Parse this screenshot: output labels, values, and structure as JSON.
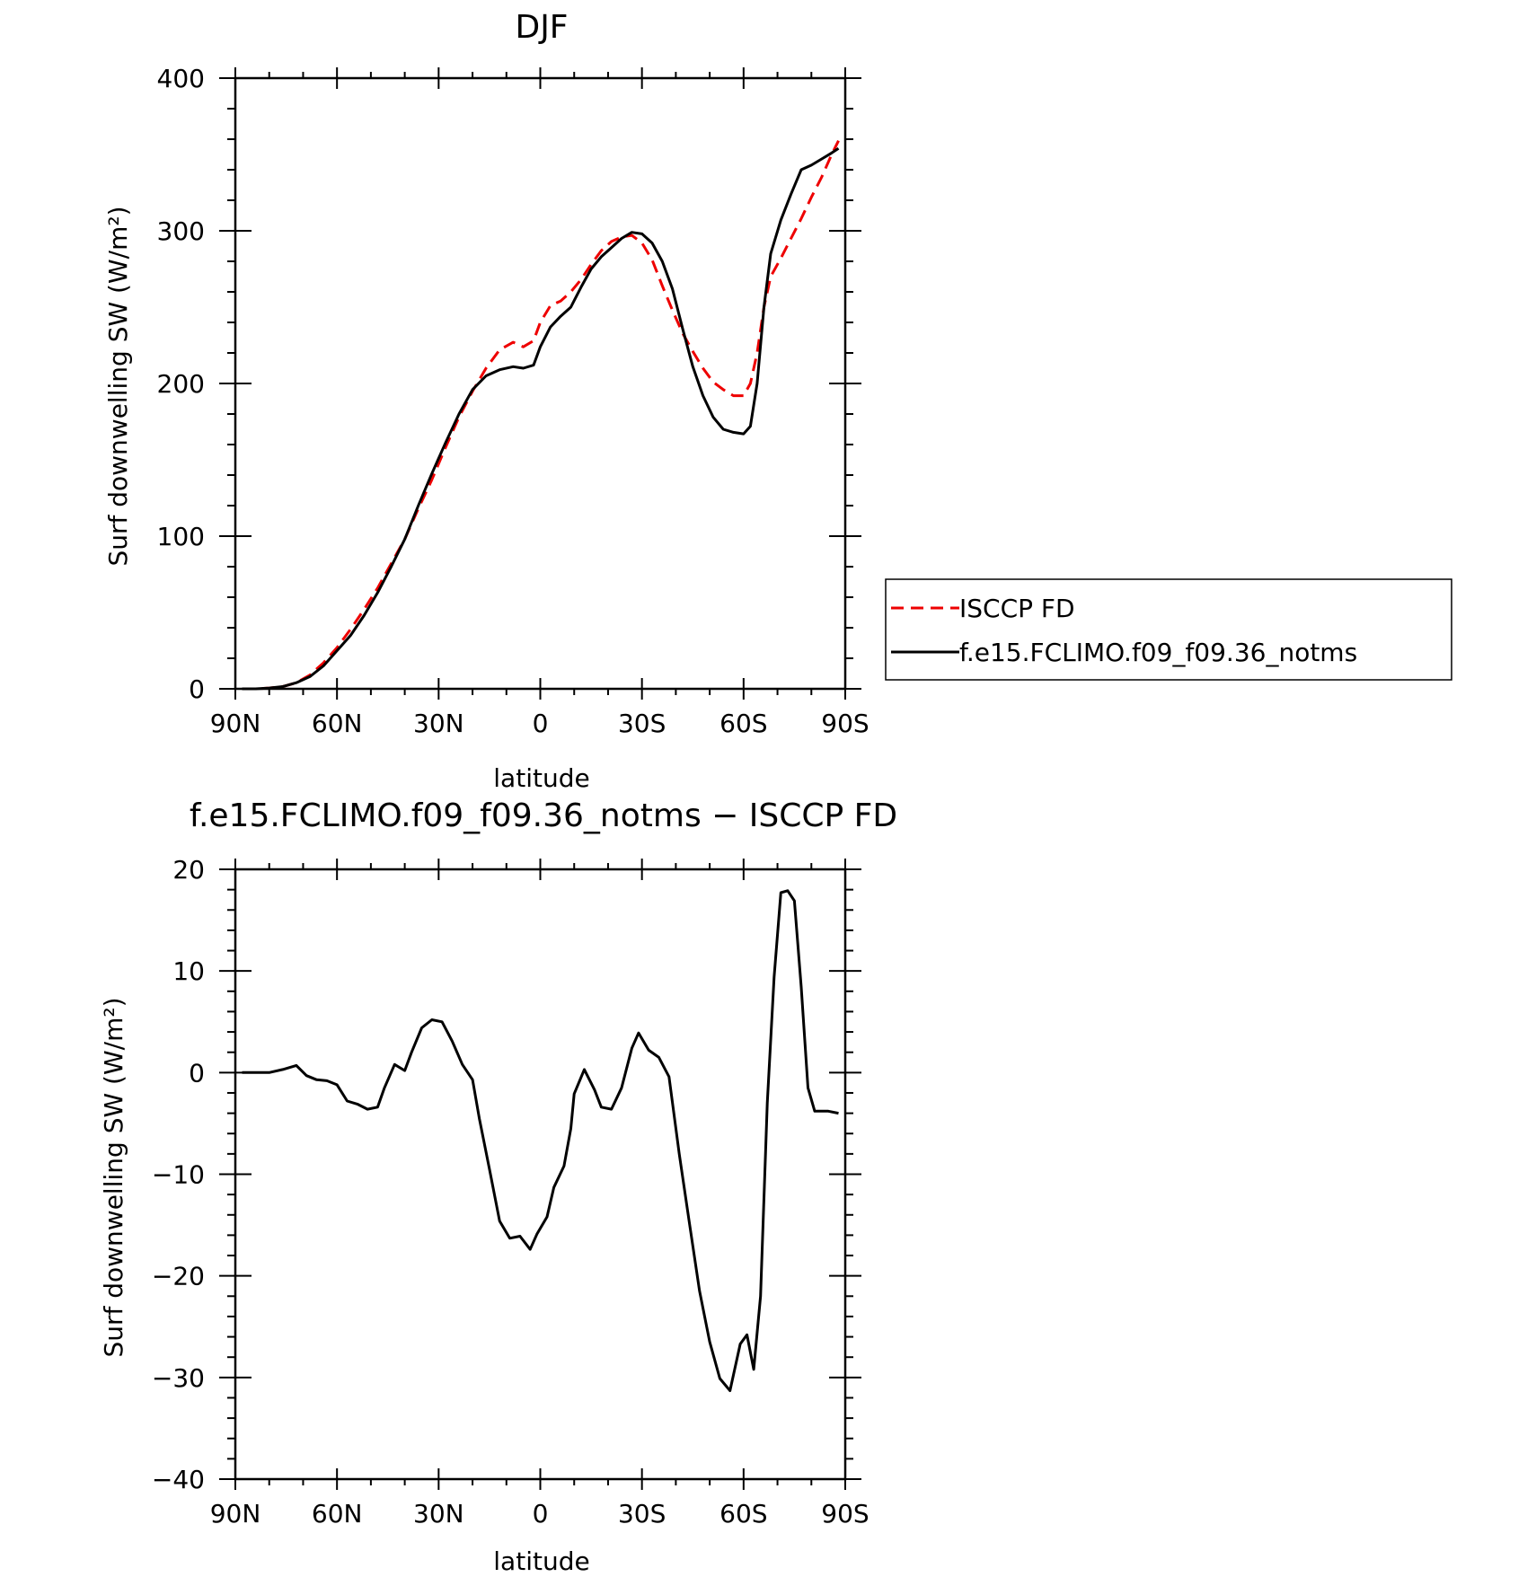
{
  "chart_data": [
    {
      "type": "line",
      "title": "DJF",
      "xlabel": "latitude",
      "ylabel": "Surf downwelling SW (W/m²)",
      "xlim": [
        -90,
        90
      ],
      "ylim": [
        0,
        400
      ],
      "x_ticks": [
        -90,
        -60,
        -30,
        0,
        30,
        60,
        90
      ],
      "x_tick_labels": [
        "90N",
        "60N",
        "30N",
        "0",
        "30S",
        "60S",
        "90S"
      ],
      "y_ticks": [
        0,
        100,
        200,
        300,
        400
      ],
      "y_tick_labels": [
        "0",
        "100",
        "200",
        "300",
        "400"
      ],
      "legend_position": "right",
      "series": [
        {
          "name": "ISCCP FD",
          "color": "#ee0000",
          "style": "dashed",
          "x": [
            -88,
            -84,
            -80,
            -76,
            -72,
            -68,
            -64,
            -60,
            -56,
            -52,
            -48,
            -44,
            -40,
            -36,
            -32,
            -28,
            -24,
            -20,
            -16,
            -12,
            -8,
            -5,
            -2,
            0,
            3,
            6,
            9,
            12,
            15,
            18,
            21,
            24,
            27,
            30,
            33,
            36,
            39,
            42,
            45,
            48,
            51,
            54,
            57,
            60,
            62,
            64,
            66,
            68,
            71,
            74,
            77,
            80,
            83,
            86,
            88
          ],
          "y": [
            0,
            0,
            0.5,
            1.5,
            4,
            9,
            17,
            27,
            39,
            52,
            66,
            82,
            98,
            118,
            137,
            158,
            178,
            195,
            210,
            222,
            227,
            224,
            228,
            240,
            251,
            254,
            260,
            268,
            278,
            287,
            293,
            296,
            297,
            292,
            281,
            264,
            248,
            233,
            221,
            210,
            201,
            196,
            192,
            192,
            200,
            220,
            250,
            270,
            282,
            295,
            308,
            322,
            335,
            350,
            359
          ]
        },
        {
          "name": "f.e15.FCLIMO.f09_f09.36_notms",
          "color": "#000000",
          "style": "solid",
          "x": [
            -88,
            -84,
            -80,
            -76,
            -72,
            -68,
            -64,
            -60,
            -56,
            -52,
            -48,
            -44,
            -40,
            -36,
            -32,
            -28,
            -24,
            -20,
            -16,
            -12,
            -8,
            -5,
            -2,
            0,
            3,
            6,
            9,
            12,
            15,
            18,
            21,
            24,
            27,
            30,
            33,
            36,
            39,
            42,
            45,
            48,
            51,
            54,
            57,
            60,
            62,
            64,
            66,
            68,
            71,
            74,
            77,
            80,
            83,
            86,
            88
          ],
          "y": [
            0,
            0,
            0.5,
            1.5,
            4,
            8,
            15,
            25,
            35,
            48,
            63,
            80,
            98,
            120,
            141,
            161,
            180,
            196,
            205,
            209,
            211,
            210,
            212,
            224,
            237,
            244,
            250,
            263,
            275,
            283,
            289,
            295,
            299,
            298,
            292,
            280,
            262,
            236,
            211,
            192,
            178,
            170,
            168,
            167,
            172,
            200,
            250,
            285,
            307,
            324,
            340,
            343,
            347,
            351,
            354
          ]
        }
      ]
    },
    {
      "type": "line",
      "title": "f.e15.FCLIMO.f09_f09.36_notms − ISCCP FD",
      "xlabel": "latitude",
      "ylabel": "Surf downwelling SW (W/m²)",
      "xlim": [
        -90,
        90
      ],
      "ylim": [
        -40,
        20
      ],
      "x_ticks": [
        -90,
        -60,
        -30,
        0,
        30,
        60,
        90
      ],
      "x_tick_labels": [
        "90N",
        "60N",
        "30N",
        "0",
        "30S",
        "60S",
        "90S"
      ],
      "y_ticks": [
        -40,
        -30,
        -20,
        -10,
        0,
        10,
        20
      ],
      "y_tick_labels": [
        "−40",
        "−30",
        "−20",
        "−10",
        "0",
        "10",
        "20"
      ],
      "series": [
        {
          "color": "#000000",
          "style": "solid",
          "x": [
            -88,
            -84,
            -80,
            -76,
            -72,
            -69,
            -66,
            -63,
            -60,
            -57,
            -54,
            -51,
            -48,
            -46,
            -43,
            -40,
            -38,
            -35,
            -32,
            -29,
            -26,
            -23,
            -20,
            -18,
            -15,
            -12,
            -9,
            -6,
            -3,
            -1,
            2,
            4,
            7,
            9,
            10,
            13,
            16,
            18,
            21,
            24,
            27,
            29,
            32,
            35,
            38,
            41,
            44,
            47,
            50,
            53,
            56,
            59,
            61,
            63,
            65,
            67,
            69,
            71,
            73,
            75,
            77,
            79,
            81,
            83,
            85,
            88
          ],
          "y": [
            0,
            0,
            0,
            0.3,
            0.7,
            -0.3,
            -0.7,
            -0.8,
            -1.2,
            -2.8,
            -3.1,
            -3.6,
            -3.4,
            -1.5,
            0.8,
            0.2,
            2.0,
            4.4,
            5.2,
            5.0,
            3.1,
            0.8,
            -0.7,
            -4.5,
            -9.5,
            -14.6,
            -16.3,
            -16.1,
            -17.4,
            -15.9,
            -14.2,
            -11.3,
            -9.2,
            -5.5,
            -2.1,
            0.3,
            -1.7,
            -3.4,
            -3.6,
            -1.5,
            2.4,
            3.9,
            2.2,
            1.5,
            -0.4,
            -8.0,
            -14.8,
            -21.5,
            -26.5,
            -30.1,
            -31.3,
            -26.7,
            -25.8,
            -29.2,
            -22.0,
            -3.0,
            9.4,
            17.7,
            17.9,
            16.9,
            8.4,
            -1.5,
            -3.8,
            -3.8,
            -3.8,
            -4.0
          ]
        }
      ]
    }
  ]
}
